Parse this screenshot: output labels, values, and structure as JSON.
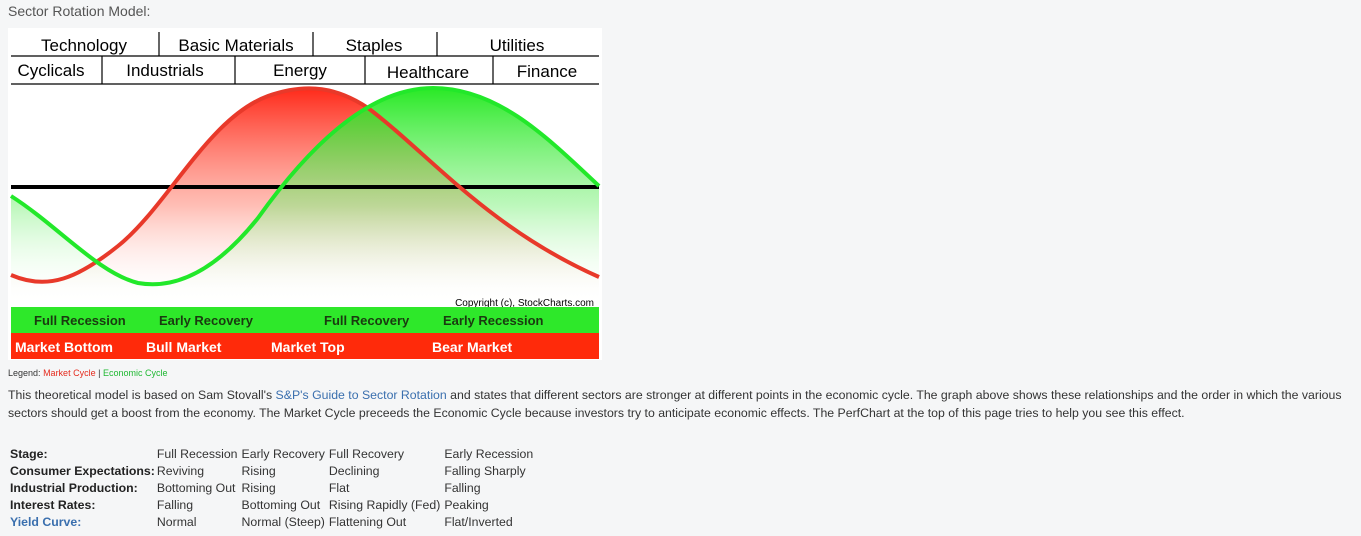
{
  "page": {
    "title": "Sector Rotation Model:"
  },
  "chart": {
    "sector_row1": [
      "Technology",
      "Basic Materials",
      "Staples",
      "Utilities"
    ],
    "sector_row2": [
      "Cyclicals",
      "Industrials",
      "Energy",
      "Healthcare",
      "Finance"
    ],
    "copyright": "Copyright (c), StockCharts.com",
    "economic_bar": [
      "Full Recession",
      "Early Recovery",
      "Full Recovery",
      "Early Recession"
    ],
    "market_bar": [
      "Market Bottom",
      "Bull Market",
      "Market Top",
      "Bear Market"
    ],
    "colors": {
      "market_cycle": "#e8392a",
      "economic_cycle": "#22e82a",
      "economic_bar_bg": "#2ee82a",
      "market_bar_bg": "#ff2a0a",
      "midline": "#000000"
    }
  },
  "legend": {
    "label": "Legend:",
    "market": "Market Cycle",
    "separator": "|",
    "economic": "Economic Cycle"
  },
  "description": {
    "before_link": "This theoretical model is based on Sam Stovall's ",
    "link_text": "S&P's Guide to Sector Rotation",
    "after_link": " and states that different sectors are stronger at different points in the economic cycle. The graph above shows these relationships and the order in which the various sectors should get a boost from the economy. The Market Cycle preceeds the Economic Cycle because investors try to anticipate economic effects. The PerfChart at the top of this page tries to help you see this effect."
  },
  "stages_table": {
    "rows": [
      {
        "label": "Stage:",
        "cells": [
          "Full Recession",
          "Early Recovery",
          "Full Recovery",
          "Early Recession"
        ]
      },
      {
        "label": "Consumer Expectations:",
        "cells": [
          "Reviving",
          "Rising",
          "Declining",
          "Falling Sharply"
        ]
      },
      {
        "label": "Industrial Production:",
        "cells": [
          "Bottoming Out",
          "Rising",
          "Flat",
          "Falling"
        ]
      },
      {
        "label": "Interest Rates:",
        "cells": [
          "Falling",
          "Bottoming Out",
          "Rising Rapidly (Fed)",
          "Peaking"
        ]
      },
      {
        "label": "Yield Curve:",
        "cells": [
          "Normal",
          "Normal (Steep)",
          "Flattening Out",
          "Flat/Inverted"
        ]
      }
    ]
  }
}
